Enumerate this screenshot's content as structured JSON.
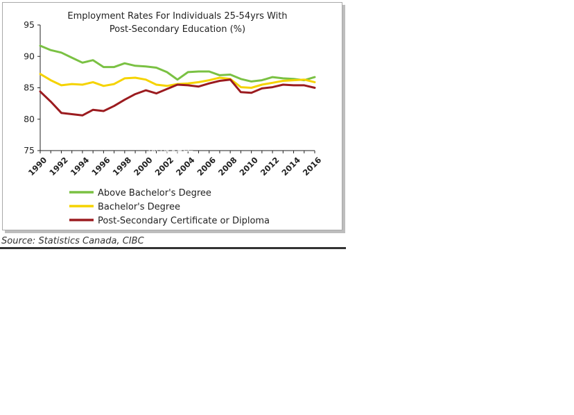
{
  "chart_data": {
    "type": "line",
    "title_line1": "Employment Rates For Individuals 25-54yrs With",
    "title_line2": "Post-Secondary Education (%)",
    "x": [
      1990,
      1991,
      1992,
      1993,
      1994,
      1995,
      1996,
      1997,
      1998,
      1999,
      2000,
      2001,
      2002,
      2003,
      2004,
      2005,
      2006,
      2007,
      2008,
      2009,
      2010,
      2011,
      2012,
      2013,
      2014,
      2015,
      2016
    ],
    "xtick_labels": [
      "1990",
      "1992",
      "1994",
      "1996",
      "1998",
      "2000",
      "2002",
      "2004",
      "2006",
      "2008",
      "2010",
      "2012",
      "2014",
      "2016"
    ],
    "xlim": [
      1990,
      2016
    ],
    "ylim": [
      75,
      95
    ],
    "yticks": [
      "75",
      "80",
      "85",
      "90",
      "95"
    ],
    "grid": false,
    "legend_position": "bottom",
    "series": [
      {
        "name": "Above Bachelor's Degree",
        "color": "#7ac143",
        "values": [
          91.7,
          91.0,
          90.6,
          89.8,
          89.0,
          89.4,
          88.3,
          88.3,
          88.9,
          88.5,
          88.4,
          88.2,
          87.5,
          86.3,
          87.5,
          87.6,
          87.6,
          87.0,
          87.1,
          86.4,
          86.0,
          86.2,
          86.7,
          86.5,
          86.4,
          86.2,
          86.7
        ]
      },
      {
        "name": "Bachelor's Degree",
        "color": "#f5d300",
        "values": [
          87.2,
          86.2,
          85.4,
          85.6,
          85.5,
          85.9,
          85.3,
          85.6,
          86.5,
          86.6,
          86.3,
          85.5,
          85.3,
          85.6,
          85.7,
          85.9,
          86.2,
          86.6,
          86.4,
          85.1,
          85.0,
          85.5,
          85.8,
          86.1,
          86.2,
          86.3,
          85.9
        ]
      },
      {
        "name": "Post-Secondary Certificate or Diploma",
        "color": "#9b1b1f",
        "values": [
          84.4,
          82.8,
          81.0,
          80.8,
          80.6,
          81.5,
          81.3,
          82.1,
          83.1,
          84.0,
          84.6,
          84.1,
          84.8,
          85.5,
          85.4,
          85.2,
          85.7,
          86.1,
          86.3,
          84.3,
          84.2,
          84.9,
          85.1,
          85.5,
          85.4,
          85.4,
          85.0
        ]
      }
    ]
  },
  "source_note": "Source: Statistics Canada, CIBC",
  "watermark": {
    "line1": "GLOBECHAMP",
    "line2": "环球移民",
    "icon": "globe-icon"
  }
}
